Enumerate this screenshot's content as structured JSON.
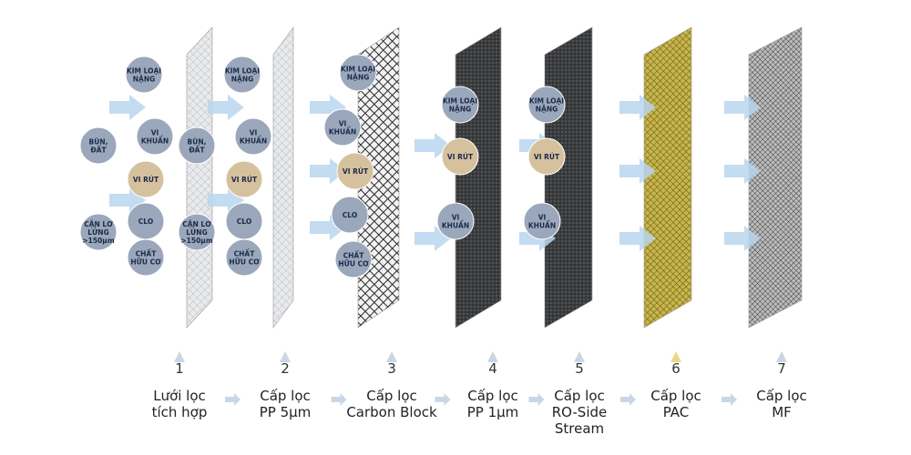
{
  "stages": [
    {
      "number": "1",
      "label": [
        "Lưới lọc",
        "tích hợp"
      ],
      "contaminants": [
        [
          "KIM LOẠI",
          "NẶNG"
        ],
        [
          "VI",
          "KHUẨN"
        ],
        [
          "BÙN,",
          "ĐẤT"
        ],
        [
          "VI RÚT"
        ],
        [
          "CLO"
        ],
        [
          "CẶN LƠ",
          "LỬNG",
          ">150µm"
        ],
        [
          "CHẤT",
          "HỮU CƠ"
        ]
      ]
    },
    {
      "number": "2",
      "label": [
        "Cấp lọc",
        "PP 5µm"
      ],
      "contaminants": [
        [
          "KIM LOẠI",
          "NẶNG"
        ],
        [
          "VI",
          "KHUẨN"
        ],
        [
          "BÙN,",
          "ĐẤT"
        ],
        [
          "VI RÚT"
        ],
        [
          "CLO"
        ],
        [
          "CẶN LƠ",
          "LỬNG",
          ">150µm"
        ],
        [
          "CHẤT",
          "HỮU CƠ"
        ]
      ]
    },
    {
      "number": "3",
      "label": [
        "Cấp lọc",
        "Carbon Block"
      ],
      "contaminants": [
        [
          "KIM LOẠI",
          "NẶNG"
        ],
        [
          "VI",
          "KHUẨN"
        ],
        [
          "VI RÚT"
        ],
        [
          "CLO"
        ],
        [
          "CHẤT",
          "HỮU CƠ"
        ]
      ]
    },
    {
      "number": "4",
      "label": [
        "Cấp lọc",
        "PP 1µm"
      ],
      "contaminants": [
        [
          "KIM LOẠI",
          "NẶNG"
        ],
        [
          "VI RÚT"
        ],
        [
          "VI",
          "KHUẨN"
        ]
      ]
    },
    {
      "number": "5",
      "label": [
        "Cấp lọc",
        "RO-Side",
        "Stream"
      ],
      "contaminants": [
        [
          "KIM LOẠI",
          "NẶNG"
        ],
        [
          "VI RÚT"
        ],
        [
          "VI",
          "KHUẨN"
        ]
      ]
    },
    {
      "number": "6",
      "label": [
        "Cấp lọc",
        "PAC"
      ],
      "contaminants": []
    },
    {
      "number": "7",
      "label": [
        "Cấp lọc",
        "MF"
      ],
      "contaminants": []
    }
  ]
}
